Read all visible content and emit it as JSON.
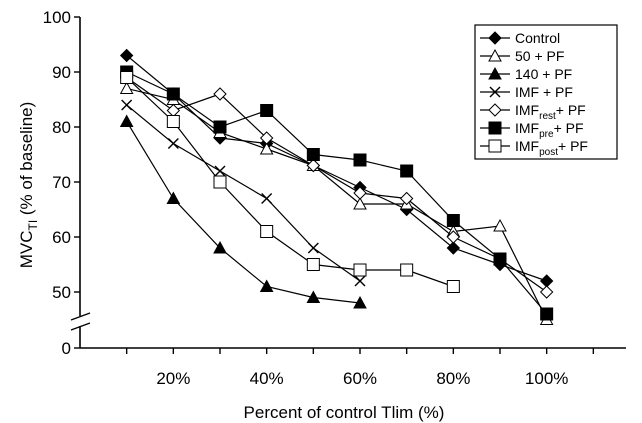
{
  "chart_data": {
    "type": "line",
    "xlabel": "Percent of control Tlim (%)",
    "ylabel_main": "MVC",
    "ylabel_sub": "TI",
    "ylabel_rest": " (% of baseline)",
    "x_ticks": [
      "20%",
      "40%",
      "60%",
      "80%",
      "100%"
    ],
    "x_tick_values": [
      20,
      40,
      60,
      80,
      100
    ],
    "x_range": [
      0,
      117
    ],
    "y_ticks": [
      "0",
      "50",
      "60",
      "70",
      "80",
      "90",
      "100"
    ],
    "y_tick_values": [
      50,
      60,
      70,
      80,
      90,
      100
    ],
    "y_range": [
      46,
      100
    ],
    "axis_break": true,
    "legend_position": "top-right",
    "series": [
      {
        "name": "Control",
        "name_sub": "",
        "name_after": "",
        "marker": "diamond-filled",
        "x": [
          10,
          20,
          30,
          40,
          50,
          60,
          70,
          80,
          90,
          100
        ],
        "y": [
          93,
          86,
          78,
          77,
          73,
          69,
          65,
          58,
          55,
          52
        ]
      },
      {
        "name": "50 + PF",
        "name_sub": "",
        "name_after": "",
        "marker": "triangle-open",
        "x": [
          10,
          20,
          30,
          40,
          50,
          60,
          70,
          80,
          90,
          100
        ],
        "y": [
          87,
          85,
          79,
          76,
          73,
          66,
          66,
          61,
          62,
          45
        ]
      },
      {
        "name": "140 + PF",
        "name_sub": "",
        "name_after": "",
        "marker": "triangle-filled",
        "x": [
          10,
          20,
          30,
          40,
          50,
          60
        ],
        "y": [
          81,
          67,
          58,
          51,
          49,
          48
        ]
      },
      {
        "name": "IMF + PF",
        "name_sub": "",
        "name_after": "",
        "marker": "x",
        "x": [
          10,
          20,
          30,
          40,
          50,
          60
        ],
        "y": [
          84,
          77,
          72,
          67,
          58,
          52
        ]
      },
      {
        "name": "IMF",
        "name_sub": "rest",
        "name_after": "+ PF",
        "marker": "diamond-open",
        "x": [
          10,
          20,
          30,
          40,
          50,
          60,
          70,
          80,
          90,
          100
        ],
        "y": [
          89,
          83,
          86,
          78,
          73,
          68,
          67,
          60,
          56,
          50
        ]
      },
      {
        "name": "IMF",
        "name_sub": "pre",
        "name_after": "+ PF",
        "marker": "square-filled",
        "x": [
          10,
          20,
          30,
          40,
          50,
          60,
          70,
          80,
          90,
          100
        ],
        "y": [
          90,
          86,
          80,
          83,
          75,
          74,
          72,
          63,
          56,
          46
        ]
      },
      {
        "name": "IMF",
        "name_sub": "post",
        "name_after": "+ PF",
        "marker": "square-open",
        "x": [
          10,
          20,
          30,
          40,
          50,
          60,
          70,
          80
        ],
        "y": [
          89,
          81,
          70,
          61,
          55,
          54,
          54,
          51
        ]
      }
    ]
  }
}
